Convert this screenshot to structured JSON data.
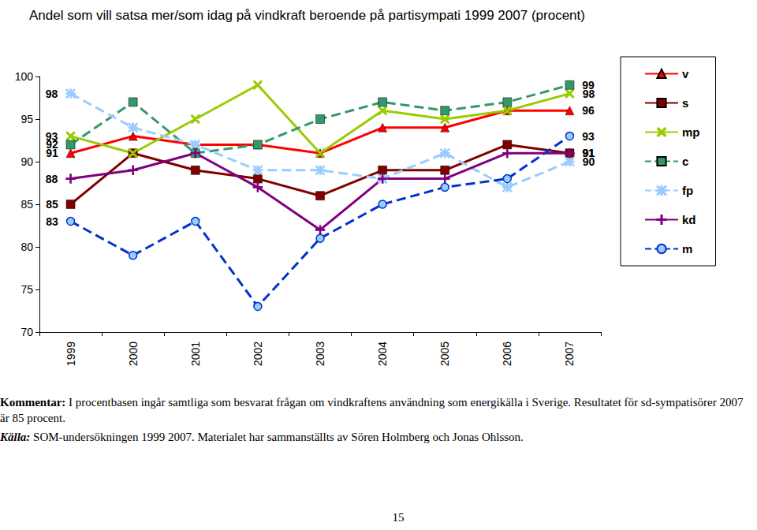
{
  "chart_data": {
    "type": "line",
    "title": "Andel som vill satsa mer/som idag på vindkraft beroende på partisympati 1999 2007 (procent)",
    "categories": [
      "1999",
      "2000",
      "2001",
      "2002",
      "2003",
      "2004",
      "2005",
      "2006",
      "2007"
    ],
    "ylim": [
      70,
      100
    ],
    "yticks": [
      70,
      75,
      80,
      85,
      90,
      95,
      100
    ],
    "grid": false,
    "legend": "right",
    "data_labels": true,
    "series": [
      {
        "name": "v",
        "color": "#ff0000",
        "marker": "triangle",
        "line_style": "solid",
        "values": [
          91,
          93,
          92,
          92,
          91,
          94,
          94,
          96,
          96
        ],
        "value_labels": [
          "91",
          null,
          null,
          null,
          null,
          null,
          null,
          null,
          "96"
        ]
      },
      {
        "name": "s",
        "color": "#800000",
        "marker": "square",
        "line_style": "solid",
        "values": [
          85,
          91,
          89,
          88,
          86,
          89,
          89,
          92,
          91
        ],
        "value_labels": [
          "85",
          null,
          null,
          null,
          null,
          null,
          null,
          null,
          "91"
        ]
      },
      {
        "name": "mp",
        "color": "#99cc00",
        "marker": "x",
        "line_style": "solid",
        "values": [
          93,
          91,
          95,
          99,
          91,
          96,
          95,
          96,
          98
        ],
        "value_labels": [
          "93",
          null,
          null,
          null,
          null,
          null,
          null,
          null,
          "98"
        ]
      },
      {
        "name": "c",
        "color": "#339966",
        "marker": "square",
        "line_style": "dashed",
        "values": [
          92,
          97,
          91,
          92,
          95,
          97,
          96,
          97,
          99
        ],
        "value_labels": [
          "92",
          null,
          null,
          null,
          null,
          null,
          null,
          null,
          "99"
        ]
      },
      {
        "name": "fp",
        "color": "#99ccff",
        "marker": "asterisk",
        "line_style": "dashed",
        "values": [
          98,
          94,
          92,
          89,
          89,
          88,
          91,
          87,
          90
        ],
        "value_labels": [
          "98",
          null,
          null,
          null,
          null,
          null,
          null,
          null,
          "90"
        ]
      },
      {
        "name": "kd",
        "color": "#800080",
        "marker": "plus",
        "line_style": "solid",
        "values": [
          88,
          89,
          91,
          87,
          82,
          88,
          88,
          91,
          91
        ],
        "value_labels": [
          "88",
          null,
          null,
          null,
          null,
          null,
          null,
          null,
          "91"
        ]
      },
      {
        "name": "m",
        "color": "#0033cc",
        "marker": "circle",
        "line_style": "dashed",
        "values": [
          83,
          79,
          83,
          73,
          81,
          85,
          87,
          88,
          93
        ],
        "value_labels": [
          "83",
          null,
          null,
          null,
          null,
          null,
          null,
          null,
          "93"
        ]
      }
    ]
  },
  "comment": {
    "label": "Kommentar:",
    "text": "I procentbasen ingår samtliga som besvarat frågan om vindkraftens användning som energikälla i Sverige. Resultatet för sd-sympatisörer 2007 är 85 procent."
  },
  "source": {
    "label": "Källa:",
    "text": "SOM-undersökningen 1999 2007. Materialet har sammanställts av Sören Holmberg och Jonas Ohlsson."
  },
  "page_number": "15"
}
